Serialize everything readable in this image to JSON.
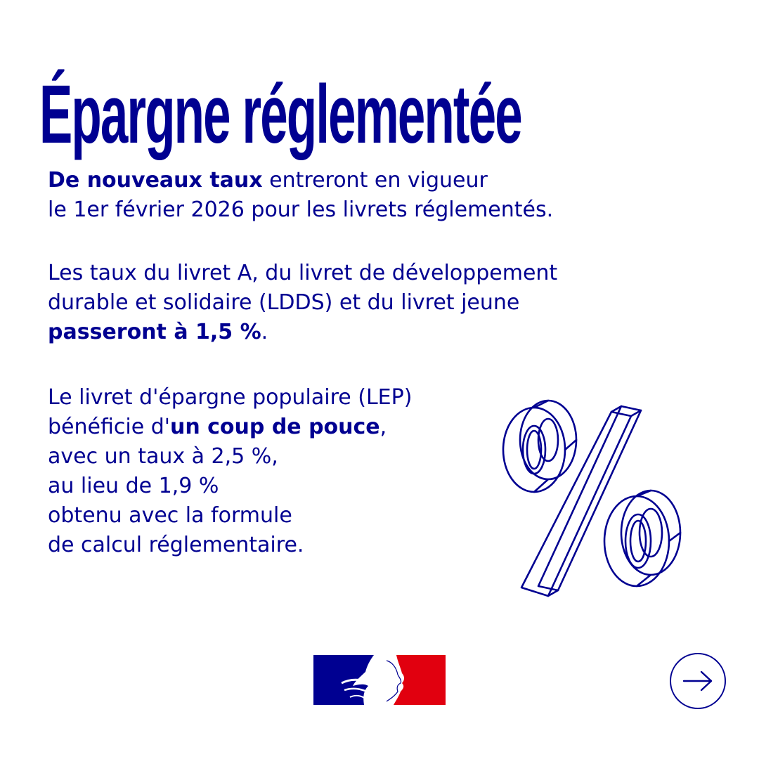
{
  "title": "Épargne réglementée",
  "paragraph1": {
    "bold": "De nouveaux taux",
    "rest_line1": " entreront en vigueur",
    "line2": "le 1er février 2026 pour les livrets réglementés."
  },
  "paragraph2": {
    "line1": "Les taux du livret A, du livret de développement",
    "line2": "durable et solidaire (LDDS) et du livret jeune",
    "bold": "passeront à 1,5 %",
    "end": "."
  },
  "paragraph3": {
    "line1": "Le livret d'épargne populaire (LEP)",
    "line2_pre": "bénéficie d'",
    "line2_bold": "un coup de pouce",
    "line2_post": ",",
    "line3": "avec un taux à 2,5 %,",
    "line4": "au lieu de 1,9 %",
    "line5": "obtenu avec la formule",
    "line6": "de calcul réglementaire."
  },
  "illustration": {
    "icon": "percent-icon"
  },
  "logo": {
    "icon": "marianne-logo",
    "colors": {
      "blue": "#000091",
      "white": "#ffffff",
      "red": "#e1000f"
    }
  },
  "navigation": {
    "icon": "arrow-right-icon"
  },
  "colors": {
    "primary": "#000091",
    "background": "#ffffff"
  }
}
